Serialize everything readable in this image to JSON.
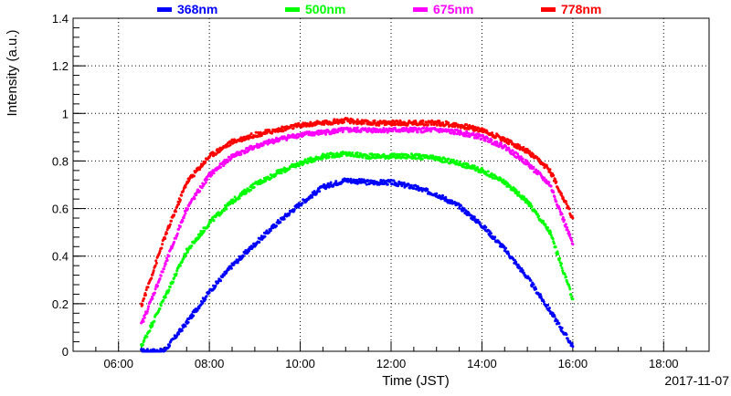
{
  "chart_data": {
    "type": "scatter",
    "title": "",
    "xlabel": "Time (JST)",
    "ylabel": "Intensity (a.u.)",
    "date": "2017-11-07",
    "xlim": [
      "05:00",
      "19:00"
    ],
    "ylim": [
      0,
      1.4
    ],
    "x_ticks": [
      "06:00",
      "08:00",
      "10:00",
      "12:00",
      "14:00",
      "16:00",
      "18:00"
    ],
    "y_ticks": [
      "0",
      "0.2",
      "0.4",
      "0.6",
      "0.8",
      "1",
      "1.2",
      "1.4"
    ],
    "grid": true,
    "legend_position": "top",
    "x": [
      "06:30",
      "07:00",
      "07:30",
      "08:00",
      "08:30",
      "09:00",
      "09:30",
      "10:00",
      "10:30",
      "11:00",
      "11:30",
      "12:00",
      "12:30",
      "13:00",
      "13:30",
      "14:00",
      "14:30",
      "15:00",
      "15:30",
      "16:00"
    ],
    "series": [
      {
        "name": "368nm",
        "color": "#0000ff",
        "values": [
          0.0,
          0.0,
          0.12,
          0.25,
          0.36,
          0.45,
          0.54,
          0.62,
          0.69,
          0.72,
          0.71,
          0.71,
          0.69,
          0.66,
          0.61,
          0.53,
          0.43,
          0.31,
          0.17,
          0.02
        ]
      },
      {
        "name": "500nm",
        "color": "#00ff00",
        "values": [
          0.02,
          0.22,
          0.42,
          0.54,
          0.63,
          0.7,
          0.75,
          0.79,
          0.82,
          0.83,
          0.82,
          0.82,
          0.82,
          0.81,
          0.79,
          0.76,
          0.71,
          0.63,
          0.5,
          0.22
        ]
      },
      {
        "name": "675nm",
        "color": "#ff00ff",
        "values": [
          0.11,
          0.35,
          0.6,
          0.74,
          0.82,
          0.86,
          0.89,
          0.91,
          0.92,
          0.93,
          0.93,
          0.93,
          0.93,
          0.93,
          0.92,
          0.9,
          0.86,
          0.79,
          0.7,
          0.45
        ]
      },
      {
        "name": "778nm",
        "color": "#ff0000",
        "values": [
          0.19,
          0.47,
          0.71,
          0.82,
          0.88,
          0.91,
          0.93,
          0.95,
          0.96,
          0.97,
          0.96,
          0.96,
          0.96,
          0.96,
          0.95,
          0.93,
          0.89,
          0.84,
          0.76,
          0.56
        ]
      }
    ]
  }
}
